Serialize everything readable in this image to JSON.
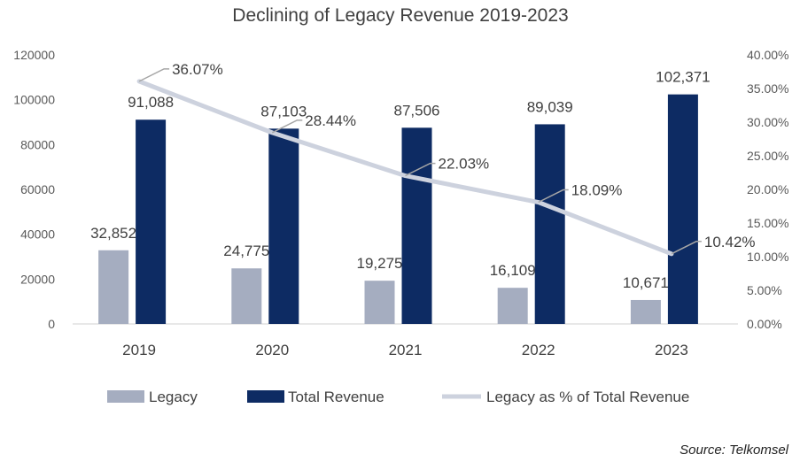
{
  "chart_data": {
    "type": "bar",
    "title": "Declining of Legacy Revenue 2019-2023",
    "categories": [
      "2019",
      "2020",
      "2021",
      "2022",
      "2023"
    ],
    "series": [
      {
        "name": "Legacy",
        "type": "bar",
        "axis": "left",
        "color": "#A5ADC0",
        "values": [
          32852,
          24775,
          19275,
          16109,
          10671
        ],
        "labels": [
          "32,852",
          "24,775",
          "19,275",
          "16,109",
          "10,671"
        ]
      },
      {
        "name": "Total Revenue",
        "type": "bar",
        "axis": "left",
        "color": "#0D2B63",
        "values": [
          91088,
          87103,
          87506,
          89039,
          102371
        ],
        "labels": [
          "91,088",
          "87,103",
          "87,506",
          "89,039",
          "102,371"
        ]
      },
      {
        "name": "Legacy as % of Total Revenue",
        "type": "line",
        "axis": "right",
        "color": "#CDD2DE",
        "values": [
          36.07,
          28.44,
          22.03,
          18.09,
          10.42
        ],
        "labels": [
          "36.07%",
          "28.44%",
          "22.03%",
          "18.09%",
          "10.42%"
        ]
      }
    ],
    "y_left": {
      "min": 0,
      "max": 120000,
      "ticks": [
        "0",
        "20000",
        "40000",
        "60000",
        "80000",
        "100000",
        "120000"
      ]
    },
    "y_right": {
      "min": 0,
      "max": 40,
      "ticks": [
        "0.00%",
        "5.00%",
        "10.00%",
        "15.00%",
        "20.00%",
        "25.00%",
        "30.00%",
        "35.00%",
        "40.00%"
      ]
    },
    "grid": false,
    "legend": "bottom",
    "source": "Source: Telkomsel"
  }
}
